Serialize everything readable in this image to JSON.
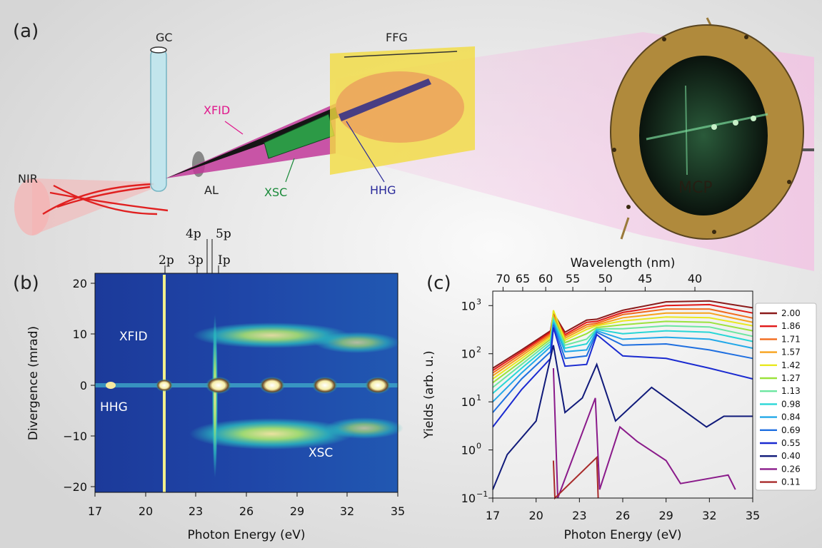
{
  "panels": {
    "a": "(a)",
    "b": "(b)",
    "c": "(c)"
  },
  "schematic": {
    "gc": "GC",
    "ffg": "FFG",
    "xfid": "XFID",
    "nir": "NIR",
    "al": "AL",
    "xsc": "XSC",
    "hhg": "HHG",
    "mcp": "MCP"
  },
  "colors": {
    "xfid": "#e0188c",
    "xsc": "#1a8a3a",
    "hhg": "#2a2a9a",
    "nir": "#e02020",
    "mcp_ring": "#b08a3c",
    "screen": "#0e1a12"
  },
  "panel_b": {
    "state_labels": [
      "2p",
      "3p",
      "4p",
      "5p",
      "Ip"
    ],
    "state_energies_eV": [
      21.2,
      23.1,
      23.7,
      24.0,
      24.6
    ],
    "annotations": [
      "XFID",
      "HHG",
      "XSC"
    ],
    "xlabel": "Photon Energy (eV)",
    "ylabel": "Divergence (mrad)",
    "xticks": [
      "17",
      "20",
      "23",
      "26",
      "29",
      "32",
      "35"
    ],
    "yticks": [
      "20",
      "10",
      "0",
      "−10",
      "−20"
    ]
  },
  "chart_data": {
    "type": "line",
    "xlabel": "Photon Energy (eV)",
    "ylabel": "Yields (arb. u.)",
    "top_axis_label": "Wavelength (nm)",
    "top_ticks": [
      "70",
      "65",
      "60",
      "55",
      "50",
      "45",
      "40"
    ],
    "xticks": [
      "17",
      "20",
      "23",
      "26",
      "29",
      "32",
      "35"
    ],
    "yscale": "log",
    "xlim": [
      17,
      35
    ],
    "ylim": [
      0.1,
      2000
    ],
    "yticks": [
      "10",
      "10",
      "10",
      "10",
      "10"
    ],
    "ytick_exponents": [
      "−1",
      "0",
      "1",
      "2",
      "3"
    ],
    "legend": [
      "2.00",
      "1.86",
      "1.71",
      "1.57",
      "1.42",
      "1.27",
      "1.13",
      "0.98",
      "0.84",
      "0.69",
      "0.55",
      "0.40",
      "0.26",
      "0.11"
    ],
    "legend_placement": "right",
    "series": [
      {
        "name": "2.00",
        "color": "#8b1a1a",
        "x": [
          17,
          19,
          21,
          21.2,
          22,
          23.5,
          24.2,
          26,
          29,
          32,
          35
        ],
        "y": [
          50,
          120,
          300,
          700,
          280,
          500,
          520,
          800,
          1200,
          1250,
          900
        ]
      },
      {
        "name": "1.86",
        "color": "#e01818",
        "x": [
          17,
          19,
          21,
          21.2,
          22,
          23.5,
          24.2,
          26,
          29,
          32,
          35
        ],
        "y": [
          45,
          110,
          280,
          650,
          250,
          450,
          470,
          720,
          1000,
          1050,
          700
        ]
      },
      {
        "name": "1.71",
        "color": "#f26a1b",
        "x": [
          17,
          19,
          21,
          21.2,
          22,
          23.5,
          24.2,
          26,
          29,
          32,
          35
        ],
        "y": [
          40,
          100,
          260,
          620,
          230,
          400,
          430,
          650,
          850,
          850,
          550
        ]
      },
      {
        "name": "1.57",
        "color": "#f7a21b",
        "x": [
          17,
          19,
          21,
          21.2,
          22,
          23.5,
          24.2,
          26,
          29,
          32,
          35
        ],
        "y": [
          35,
          90,
          240,
          600,
          210,
          360,
          400,
          560,
          700,
          700,
          450
        ]
      },
      {
        "name": "1.42",
        "color": "#e8e820",
        "x": [
          17,
          19,
          21,
          21.2,
          22,
          23.5,
          24.2,
          26,
          29,
          32,
          35
        ],
        "y": [
          30,
          80,
          220,
          800,
          190,
          320,
          380,
          480,
          580,
          560,
          380
        ]
      },
      {
        "name": "1.27",
        "color": "#9be23c",
        "x": [
          17,
          19,
          21,
          21.2,
          22,
          23.5,
          24.2,
          26,
          29,
          32,
          35
        ],
        "y": [
          25,
          70,
          200,
          560,
          170,
          260,
          350,
          400,
          470,
          450,
          300
        ]
      },
      {
        "name": "1.13",
        "color": "#6ce6a0",
        "x": [
          17,
          19,
          21,
          21.2,
          22,
          23.5,
          24.2,
          26,
          29,
          32,
          35
        ],
        "y": [
          20,
          60,
          180,
          520,
          150,
          200,
          330,
          330,
          380,
          360,
          230
        ]
      },
      {
        "name": "0.98",
        "color": "#28d6d6",
        "x": [
          17,
          19,
          21,
          21.2,
          22,
          23.5,
          24.2,
          26,
          29,
          32,
          35
        ],
        "y": [
          15,
          50,
          160,
          480,
          130,
          160,
          320,
          260,
          300,
          280,
          180
        ]
      },
      {
        "name": "0.84",
        "color": "#22a8e8",
        "x": [
          17,
          19,
          21,
          21.2,
          22,
          23.5,
          24.2,
          26,
          29,
          32,
          35
        ],
        "y": [
          10,
          40,
          140,
          440,
          110,
          120,
          300,
          200,
          220,
          200,
          130
        ]
      },
      {
        "name": "0.69",
        "color": "#1f6fe0",
        "x": [
          17,
          19,
          21,
          21.2,
          22,
          23.5,
          24.2,
          26,
          29,
          32,
          35
        ],
        "y": [
          6,
          30,
          110,
          400,
          80,
          90,
          280,
          150,
          160,
          120,
          80
        ]
      },
      {
        "name": "0.55",
        "color": "#1a2ad0",
        "x": [
          17,
          19,
          21,
          21.2,
          22,
          23.5,
          24.2,
          26,
          29,
          32,
          35
        ],
        "y": [
          3,
          18,
          80,
          350,
          55,
          60,
          250,
          90,
          80,
          50,
          30
        ]
      },
      {
        "name": "0.40",
        "color": "#101a7a",
        "x": [
          17,
          18,
          20,
          21.2,
          22,
          23.2,
          24.2,
          25.5,
          28,
          31.8,
          33,
          35
        ],
        "y": [
          0.15,
          0.8,
          4,
          150,
          6,
          12,
          60,
          4,
          20,
          3,
          5,
          5
        ]
      },
      {
        "name": "0.26",
        "color": "#8a1a8a",
        "x": [
          21.2,
          21.5,
          24.1,
          24.4,
          25.8,
          27,
          29,
          30,
          33.3,
          33.8
        ],
        "y": [
          50,
          0.1,
          12,
          0.15,
          3,
          1.5,
          0.6,
          0.2,
          0.3,
          0.15
        ]
      },
      {
        "name": "0.11",
        "color": "#a82a2a",
        "x": [
          21.2,
          21.3,
          24.2,
          24.3
        ],
        "y": [
          0.6,
          0.1,
          0.7,
          0.1
        ]
      }
    ]
  }
}
